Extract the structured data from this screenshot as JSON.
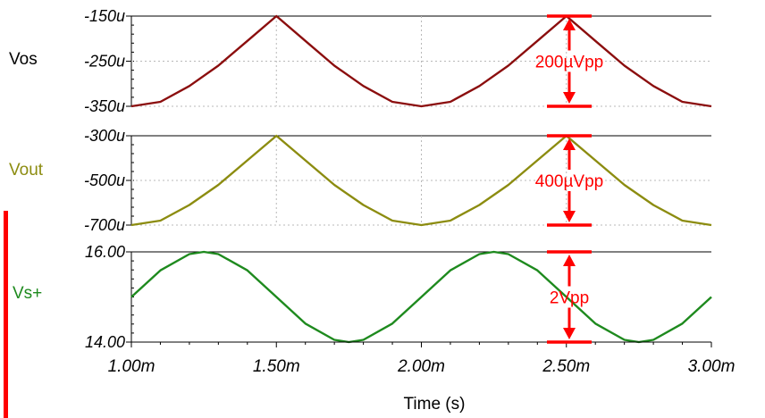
{
  "chart_data": {
    "type": "line",
    "xlabel": "Time (s)",
    "x_ticks": [
      "1.00m",
      "1.50m",
      "2.00m",
      "2.50m",
      "3.00m"
    ],
    "xlim": [
      0.001,
      0.003
    ],
    "panels": [
      {
        "name": "Vos",
        "color": "#8b0e0e",
        "y_ticks": [
          "-150u",
          "-250u",
          "-350u"
        ],
        "ylim": [
          -0.00035,
          -0.00015
        ],
        "grid": true,
        "series": [
          {
            "name": "Vos",
            "x": [
              0.001,
              0.0011,
              0.0012,
              0.0013,
              0.0014,
              0.0015,
              0.0016,
              0.0017,
              0.0018,
              0.0019,
              0.002,
              0.0021,
              0.0022,
              0.0023,
              0.0024,
              0.0025,
              0.0026,
              0.0027,
              0.0028,
              0.0029,
              0.003
            ],
            "y": [
              -0.00035,
              -0.00034,
              -0.000305,
              -0.00026,
              -0.000205,
              -0.00015,
              -0.000205,
              -0.00026,
              -0.000305,
              -0.00034,
              -0.00035,
              -0.00034,
              -0.000305,
              -0.00026,
              -0.000205,
              -0.00015,
              -0.000205,
              -0.00026,
              -0.000305,
              -0.00034,
              -0.00035
            ]
          }
        ],
        "annotation": "200µVpp"
      },
      {
        "name": "Vout",
        "color": "#8c8c10",
        "y_ticks": [
          "-300u",
          "-500u",
          "-700u"
        ],
        "ylim": [
          -0.0007,
          -0.0003
        ],
        "grid": true,
        "series": [
          {
            "name": "Vout",
            "x": [
              0.001,
              0.0011,
              0.0012,
              0.0013,
              0.0014,
              0.0015,
              0.0016,
              0.0017,
              0.0018,
              0.0019,
              0.002,
              0.0021,
              0.0022,
              0.0023,
              0.0024,
              0.0025,
              0.0026,
              0.0027,
              0.0028,
              0.0029,
              0.003
            ],
            "y": [
              -0.0007,
              -0.00068,
              -0.00061,
              -0.00052,
              -0.00041,
              -0.0003,
              -0.00041,
              -0.00052,
              -0.00061,
              -0.00068,
              -0.0007,
              -0.00068,
              -0.00061,
              -0.00052,
              -0.00041,
              -0.0003,
              -0.00041,
              -0.00052,
              -0.00061,
              -0.00068,
              -0.0007
            ]
          }
        ],
        "annotation": "400µVpp"
      },
      {
        "name": "Vs+",
        "color": "#1e8a1e",
        "y_ticks": [
          "16.00",
          "14.00"
        ],
        "ylim": [
          14,
          16
        ],
        "grid": false,
        "series": [
          {
            "name": "Vs+",
            "x": [
              0.001,
              0.0011,
              0.0012,
              0.00125,
              0.0013,
              0.0014,
              0.0015,
              0.0016,
              0.0017,
              0.00175,
              0.0018,
              0.0019,
              0.002,
              0.0021,
              0.0022,
              0.00225,
              0.0023,
              0.0024,
              0.0025,
              0.0026,
              0.0027,
              0.00275,
              0.0028,
              0.0029,
              0.003
            ],
            "y": [
              15,
              15.59,
              15.95,
              16,
              15.95,
              15.59,
              15,
              14.41,
              14.05,
              14,
              14.05,
              14.41,
              15,
              15.59,
              15.95,
              16,
              15.95,
              15.59,
              15,
              14.41,
              14.05,
              14,
              14.05,
              14.41,
              15
            ]
          }
        ],
        "annotation": "2Vpp"
      }
    ]
  },
  "colors": {
    "annotation": "#ff0000"
  }
}
